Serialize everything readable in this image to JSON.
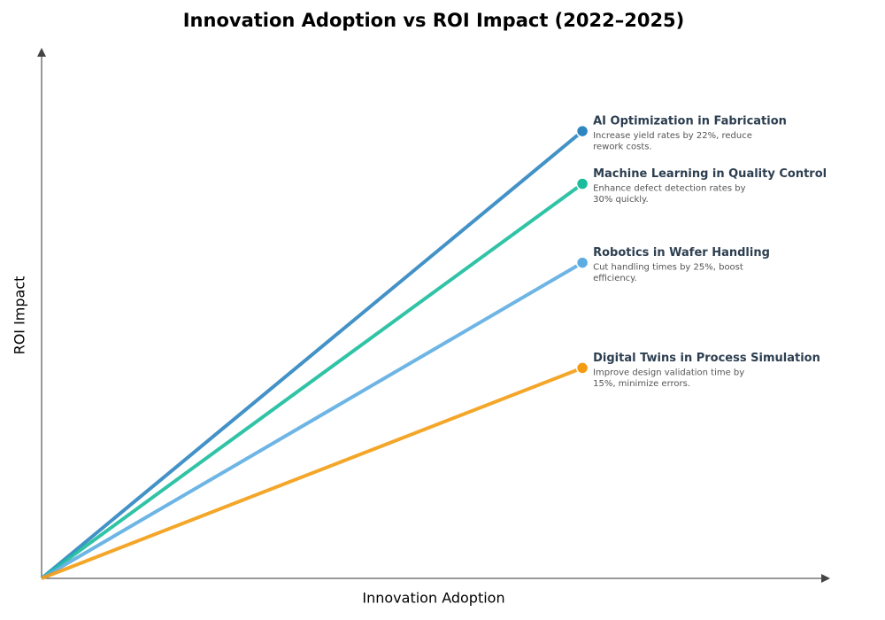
{
  "chart_data": {
    "type": "line",
    "title": "Innovation Adoption vs ROI Impact (2022–2025)",
    "x_label": "Innovation Adoption",
    "y_label": "ROI Impact",
    "xlim": [
      0,
      1
    ],
    "ylim": [
      0,
      1
    ],
    "series": [
      {
        "name": "AI Optimization in Fabrication",
        "color": "#2e86c1",
        "x": [
          0,
          0.7
        ],
        "values": [
          0,
          0.85
        ],
        "description": [
          "Increase yield rates by 22%, reduce",
          "rework costs."
        ]
      },
      {
        "name": "Machine Learning in Quality Control",
        "color": "#1abc9c",
        "x": [
          0,
          0.7
        ],
        "values": [
          0,
          0.75
        ],
        "description": [
          "Enhance defect detection rates by",
          "30% quickly."
        ]
      },
      {
        "name": "Robotics in Wafer Handling",
        "color": "#5dade2",
        "x": [
          0,
          0.7
        ],
        "values": [
          0,
          0.6
        ],
        "description": [
          "Cut handling times by 25%, boost",
          "efficiency."
        ]
      },
      {
        "name": "Digital Twins in Process Simulation",
        "color": "#f39c12",
        "x": [
          0,
          0.7
        ],
        "values": [
          0,
          0.4
        ],
        "description": [
          "Improve design validation time by",
          "15%, minimize errors."
        ]
      }
    ]
  }
}
